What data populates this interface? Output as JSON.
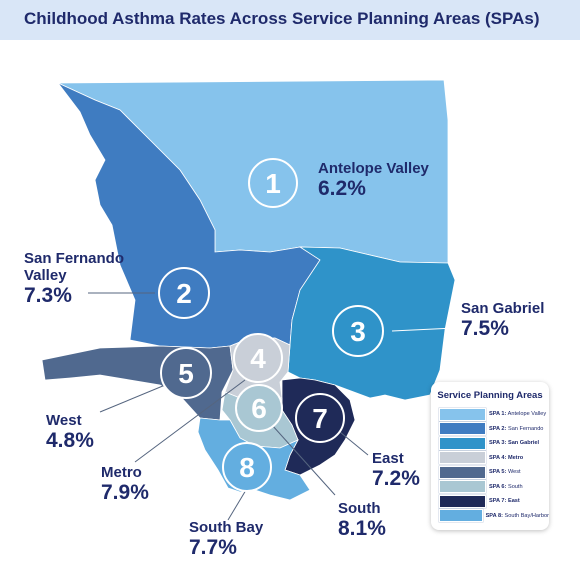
{
  "title": "Childhood Asthma Rates Across Service Planning Areas (SPAs)",
  "colors": {
    "spa1": "#86c3ec",
    "spa2": "#3f7cc1",
    "spa3": "#2f93c9",
    "spa4": "#c9cfd8",
    "spa5": "#50698f",
    "spa6": "#a9c7d3",
    "spa7": "#1f2a58",
    "spa8": "#63aee0",
    "text": "#1f2a6b"
  },
  "areas": [
    {
      "number": "1",
      "name": "Antelope Valley",
      "rate": "6.2%"
    },
    {
      "number": "2",
      "name": "San Fernando Valley",
      "rate": "7.3%"
    },
    {
      "number": "3",
      "name": "San Gabriel",
      "rate": "7.5%"
    },
    {
      "number": "4",
      "name": "Metro",
      "rate": "7.9%"
    },
    {
      "number": "5",
      "name": "West",
      "rate": "4.8%"
    },
    {
      "number": "6",
      "name": "South",
      "rate": "8.1%"
    },
    {
      "number": "7",
      "name": "East",
      "rate": "7.2%"
    },
    {
      "number": "8",
      "name": "South Bay",
      "rate": "7.7%"
    }
  ],
  "labels": {
    "sfv_line1": "San Fernando",
    "sfv_line2": "Valley"
  },
  "legend": {
    "title": "Service Planning Areas",
    "items": [
      {
        "code": "SPA 1:",
        "name": "Antelope Valley",
        "color": "#86c3ec",
        "bold": false
      },
      {
        "code": "SPA 2:",
        "name": "San Fernando",
        "color": "#3f7cc1",
        "bold": false
      },
      {
        "code": "SPA 3:",
        "name": "San Gabriel",
        "color": "#2f93c9",
        "bold": true
      },
      {
        "code": "SPA 4:",
        "name": "Metro",
        "color": "#c9cfd8",
        "bold": true
      },
      {
        "code": "SPA 5:",
        "name": "West",
        "color": "#50698f",
        "bold": false
      },
      {
        "code": "SPA 6:",
        "name": "South",
        "color": "#a9c7d3",
        "bold": false
      },
      {
        "code": "SPA 7:",
        "name": "East",
        "color": "#1f2a58",
        "bold": true
      },
      {
        "code": "SPA 8:",
        "name": "South Bay/Harbor",
        "color": "#63aee0",
        "bold": false
      }
    ]
  }
}
